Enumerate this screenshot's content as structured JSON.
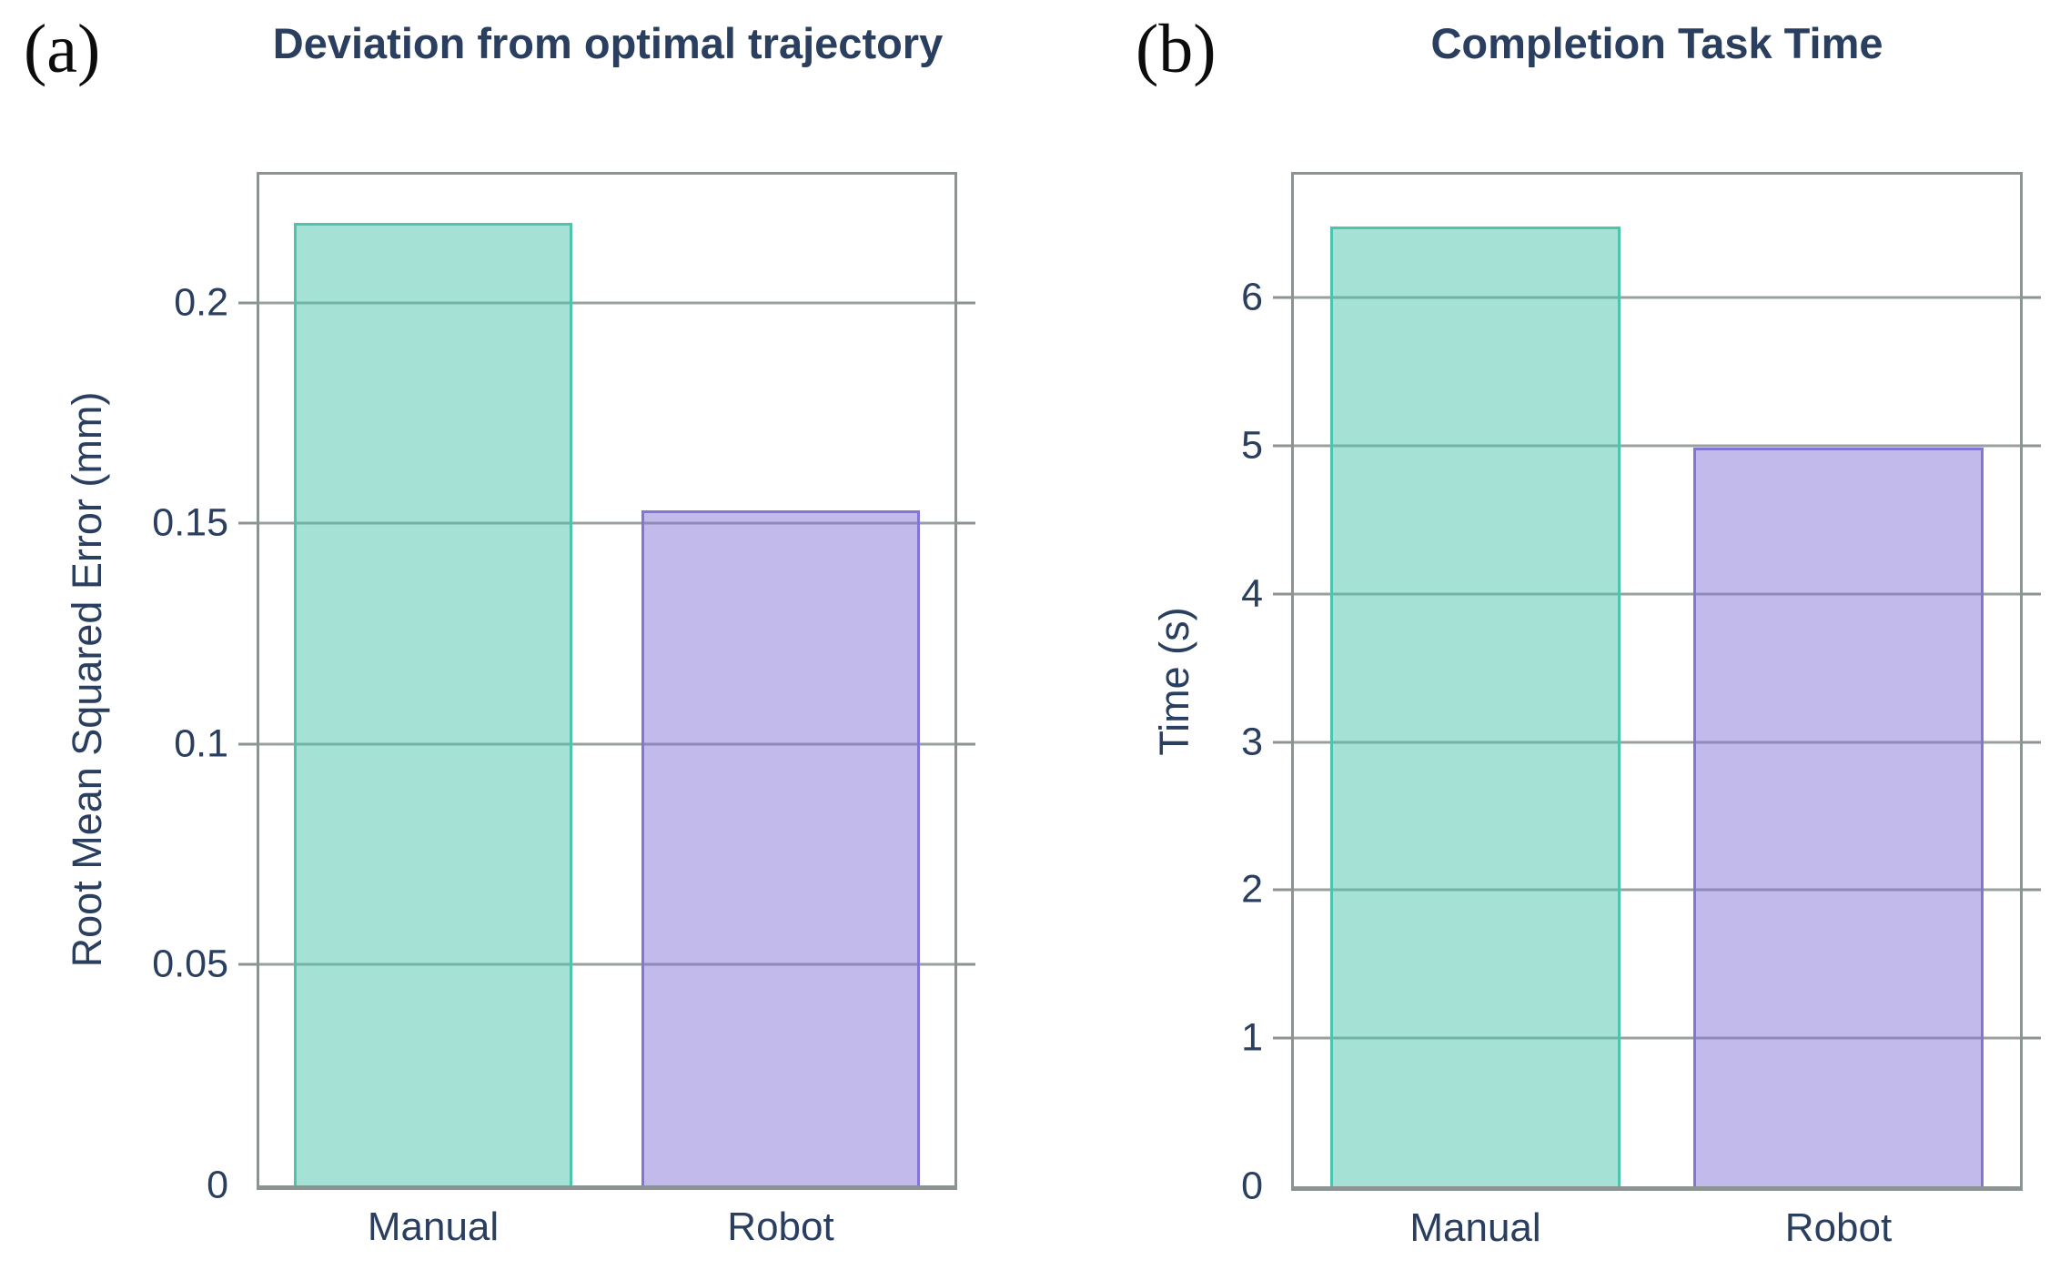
{
  "figure": {
    "background": "#ffffff"
  },
  "colors": {
    "text": "#2a3f5f",
    "panel_letter": "#0c0c0c",
    "axis_line": "#8b9492",
    "gridline": "#98a19e",
    "series": [
      {
        "name": "Manual",
        "border": "#4ec3ad",
        "fill": "rgba(78,195,173,0.5)"
      },
      {
        "name": "Robot",
        "border": "#8375d6",
        "fill": "rgba(131,117,214,0.5)"
      }
    ]
  },
  "chart_data": [
    {
      "type": "bar",
      "panel_label": "(a)",
      "title": "Deviation from optimal trajectory",
      "categories": [
        "Manual",
        "Robot"
      ],
      "values": [
        0.218,
        0.153
      ],
      "xlabel": "",
      "ylabel": "Root Mean Squared Error (mm)",
      "yticks": [
        0,
        0.05,
        0.1,
        0.15,
        0.2
      ],
      "ytick_labels": [
        "0",
        "0.05",
        "0.1",
        "0.15",
        "0.2"
      ],
      "ylim": [
        0,
        0.229
      ],
      "grid": true,
      "legend": "none",
      "bar_relative_width": 0.8
    },
    {
      "type": "bar",
      "panel_label": "(b)",
      "title": "Completion Task Time",
      "categories": [
        "Manual",
        "Robot"
      ],
      "values": [
        6.48,
        4.99
      ],
      "xlabel": "",
      "ylabel": "Time (s)",
      "yticks": [
        0,
        1,
        2,
        3,
        4,
        5,
        6
      ],
      "ytick_labels": [
        "0",
        "1",
        "2",
        "3",
        "4",
        "5",
        "6"
      ],
      "ylim": [
        0,
        6.83
      ],
      "grid": true,
      "legend": "none",
      "bar_relative_width": 0.8
    }
  ]
}
